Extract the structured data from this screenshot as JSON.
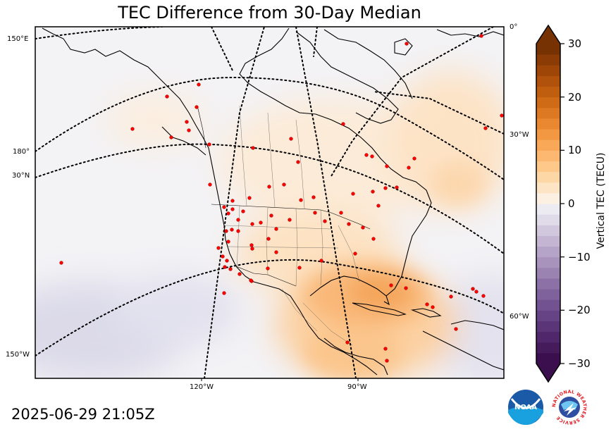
{
  "title": "TEC Difference from 30-Day Median",
  "timestamp": "2025-06-29 21:05Z",
  "map": {
    "left_labels": [
      "150°E",
      "180°",
      "30°N",
      "150°W"
    ],
    "right_labels": [
      "0°",
      "30°W",
      "60°W"
    ],
    "bottom_labels": [
      "120°W",
      "90°W"
    ]
  },
  "colorbar": {
    "label": "Vertical TEC (TECU)",
    "min": -30,
    "max": 30,
    "ticks": [
      "30",
      "20",
      "10",
      "0",
      "−10",
      "−20",
      "−30"
    ],
    "colors_negative": [
      "#3b0f4d",
      "#451b5c",
      "#4f276a",
      "#5a3577",
      "#664384",
      "#725290",
      "#7f619b",
      "#8c71a6",
      "#9a82b1",
      "#a893bd",
      "#b6a4c8",
      "#c4b6d3",
      "#d1c8de",
      "#dfdbe9",
      "#ecebf2"
    ],
    "colors_positive": [
      "#fbf0e2",
      "#fde4c4",
      "#fdd7a6",
      "#fdc88a",
      "#fcb870",
      "#f9a858",
      "#f39842",
      "#e98830",
      "#dc7922",
      "#cf6b17",
      "#c05e10",
      "#b0520b",
      "#9e4608",
      "#8b3c06",
      "#773204"
    ]
  },
  "logos": {
    "noaa": "noaa-logo",
    "nws": "national-weather-service-logo",
    "nws_text": "NATIONAL WEATHER SERVICE"
  }
}
